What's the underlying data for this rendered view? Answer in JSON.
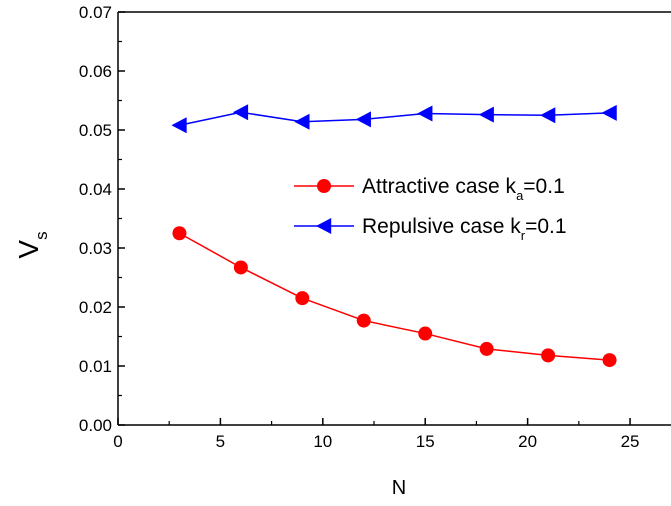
{
  "chart_data": {
    "type": "line",
    "xlabel": "N",
    "ylabel": "V",
    "ylabel_subscript": "s",
    "xlim": [
      0,
      27
    ],
    "ylim": [
      0,
      0.07
    ],
    "x_ticks": [
      "0",
      "5",
      "10",
      "15",
      "20",
      "25"
    ],
    "y_ticks": [
      "0.00",
      "0.01",
      "0.02",
      "0.03",
      "0.04",
      "0.05",
      "0.06",
      "0.07"
    ],
    "grid": false,
    "legend_position": "center-right",
    "series": [
      {
        "name": "Attractive case k",
        "name_subscript": "a",
        "name_suffix": "=0.1",
        "marker": "circle",
        "color": "#ff0000",
        "x": [
          3,
          6,
          9,
          12,
          15,
          18,
          21,
          24
        ],
        "y": [
          0.0325,
          0.0267,
          0.0215,
          0.0177,
          0.0155,
          0.0129,
          0.0118,
          0.011
        ]
      },
      {
        "name": "Repulsive case k",
        "name_subscript": "r",
        "name_suffix": "=0.1",
        "marker": "triangle-left",
        "color": "#0000ff",
        "x": [
          3,
          6,
          9,
          12,
          15,
          18,
          21,
          24
        ],
        "y": [
          0.0508,
          0.053,
          0.0514,
          0.0518,
          0.0528,
          0.0526,
          0.0525,
          0.0529
        ]
      }
    ]
  }
}
